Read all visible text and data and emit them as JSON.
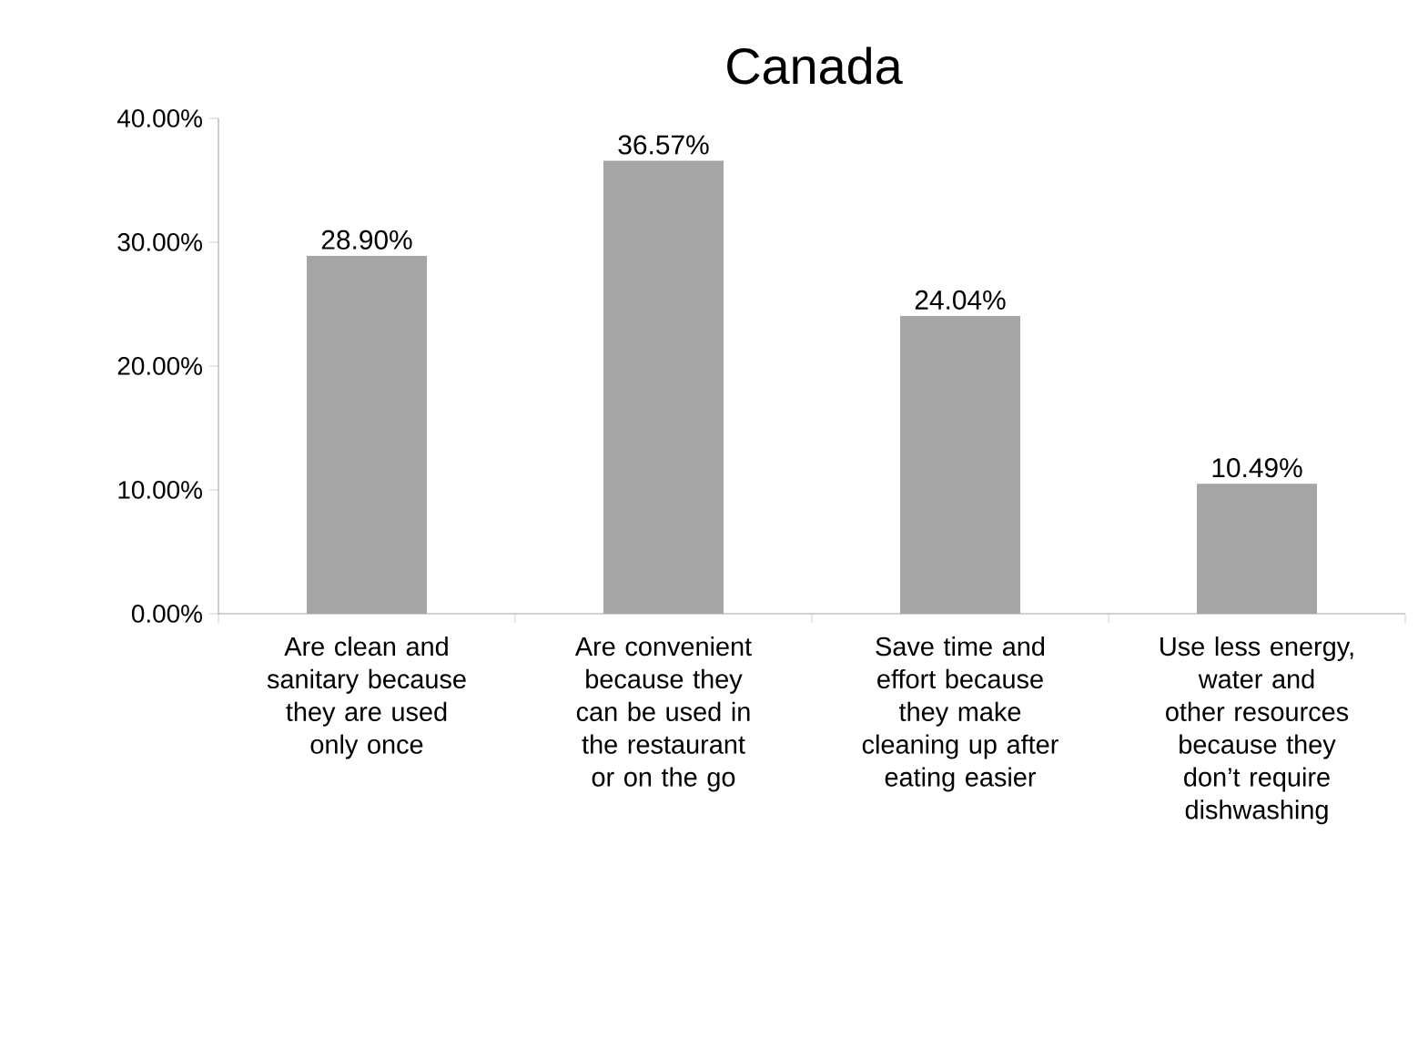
{
  "chart_data": {
    "type": "bar",
    "title": "Canada",
    "categories": [
      "Are clean and sanitary because they are used only once",
      "Are convenient because they can be used in the restaurant or on the go",
      "Save time and effort because they make cleaning up after eating easier",
      "Use less energy, water and other resources because they don’t require dishwashing"
    ],
    "values": [
      28.9,
      36.57,
      24.04,
      10.49
    ],
    "value_labels": [
      "28.90%",
      "36.57%",
      "24.04%",
      "10.49%"
    ],
    "color": "#a5a5a5",
    "ylim": [
      0,
      40
    ],
    "yticks": [
      {
        "value": 0,
        "label": "0.00%"
      },
      {
        "value": 10,
        "label": "10.00%"
      },
      {
        "value": 20,
        "label": "20.00%"
      },
      {
        "value": 30,
        "label": "30.00%"
      },
      {
        "value": 40,
        "label": "40.00%"
      }
    ],
    "grid": false
  }
}
